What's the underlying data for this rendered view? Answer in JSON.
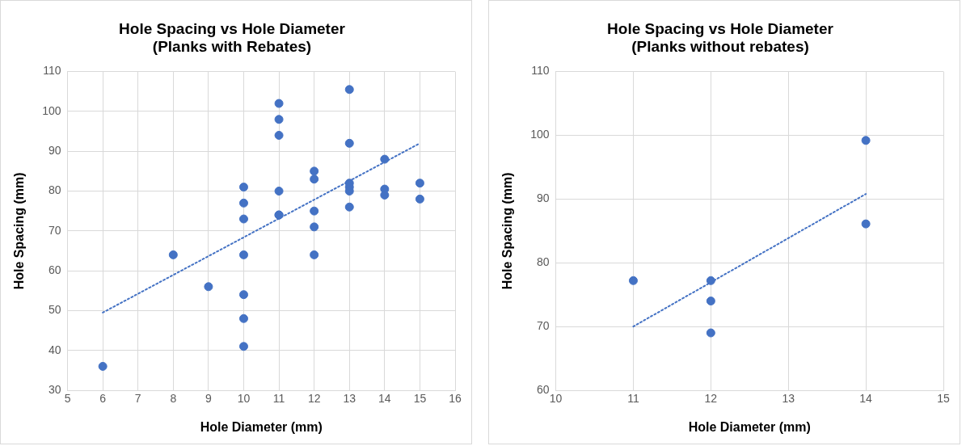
{
  "chart_data": [
    {
      "type": "scatter",
      "title": "Hole Spacing vs Hole Diameter\n(Planks with Rebates)",
      "xlabel": "Hole Diameter (mm)",
      "ylabel": "Hole Spacing (mm)",
      "xlim": [
        5,
        16
      ],
      "xticks": [
        5,
        6,
        7,
        8,
        9,
        10,
        11,
        12,
        13,
        14,
        15,
        16
      ],
      "ylim": [
        30,
        110
      ],
      "yticks": [
        30,
        40,
        50,
        60,
        70,
        80,
        90,
        100,
        110
      ],
      "grid": true,
      "legend": false,
      "marker": "circle",
      "series": [
        {
          "color": "#4472c4",
          "x": [
            6,
            8,
            9,
            10,
            10,
            10,
            10,
            10,
            10,
            10,
            11,
            11,
            11,
            11,
            11,
            11,
            12,
            12,
            12,
            12,
            12,
            13,
            13,
            13,
            13,
            13,
            13,
            14,
            14,
            14,
            15,
            15
          ],
          "values": [
            36,
            64,
            56,
            81,
            77,
            73,
            64,
            54,
            48,
            41,
            102,
            98,
            94,
            80,
            74,
            74,
            85,
            83,
            75,
            71,
            64,
            105.5,
            92,
            82,
            81,
            80,
            76,
            88,
            80.5,
            79,
            82,
            78
          ]
        },
        {
          "type": "line",
          "color": "#4472c4",
          "line_style": "dotted",
          "marker": "none",
          "x": [
            6,
            15
          ],
          "values": [
            49.5,
            92
          ]
        }
      ]
    },
    {
      "type": "scatter",
      "title": "Hole Spacing vs Hole Diameter\n(Planks without rebates)",
      "xlabel": "Hole Diameter (mm)",
      "ylabel": "Hole Spacing (mm)",
      "xlim": [
        10,
        15
      ],
      "xticks": [
        10,
        11,
        12,
        13,
        14,
        15
      ],
      "ylim": [
        60,
        110
      ],
      "yticks": [
        60,
        70,
        80,
        90,
        100,
        110
      ],
      "grid": true,
      "legend": false,
      "marker": "circle",
      "series": [
        {
          "color": "#4472c4",
          "x": [
            11,
            12,
            12,
            12,
            14,
            14
          ],
          "values": [
            77.2,
            77.2,
            74,
            69,
            99.2,
            86.1
          ]
        },
        {
          "type": "line",
          "color": "#4472c4",
          "line_style": "dotted",
          "marker": "none",
          "x": [
            11,
            14
          ],
          "values": [
            70,
            90.8
          ]
        }
      ]
    }
  ]
}
